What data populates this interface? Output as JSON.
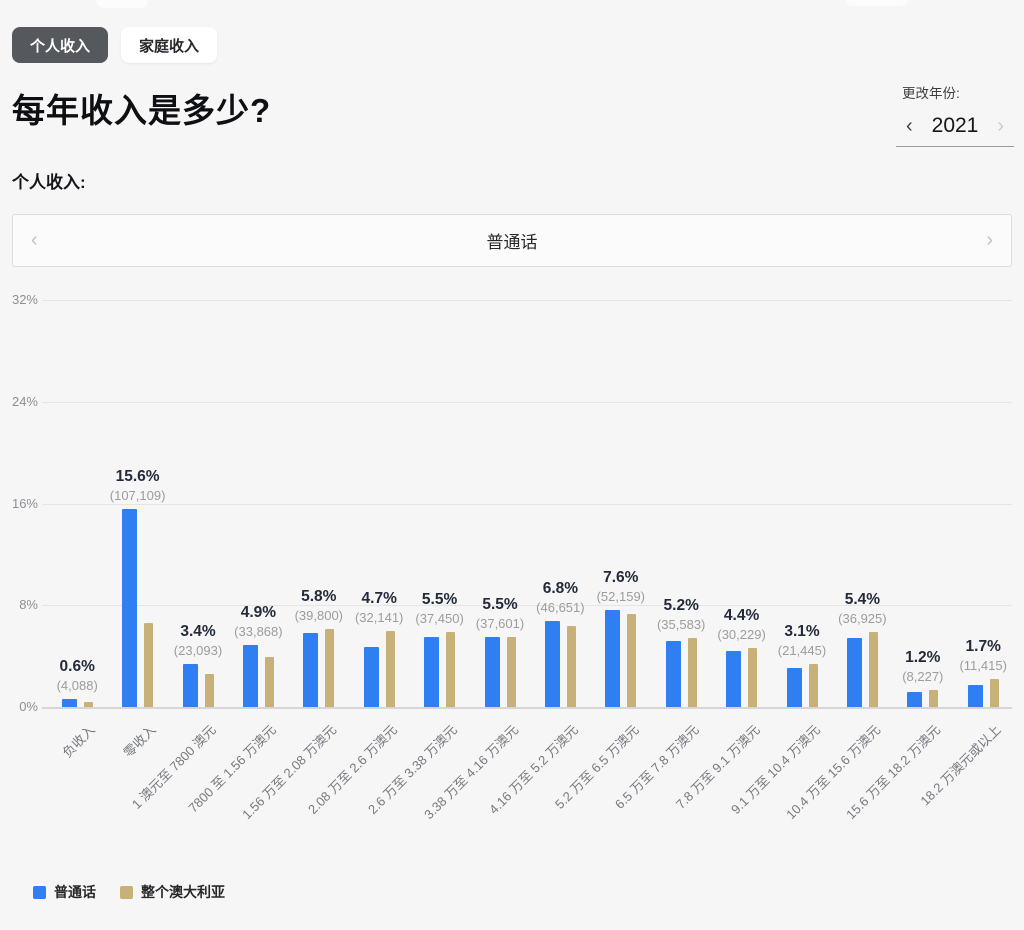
{
  "tabs": [
    {
      "label": "个人收入",
      "selected": true
    },
    {
      "label": "家庭收入",
      "selected": false
    }
  ],
  "title": "每年收入是多少?",
  "year_control": {
    "label": "更改年份:",
    "year": "2021",
    "prev_icon": "‹",
    "next_icon": "›"
  },
  "section_label": "个人收入:",
  "carousel": {
    "value": "普通话",
    "prev_icon": "‹",
    "next_icon": "›"
  },
  "colors": {
    "primary_series": "#2f7ef2",
    "secondary_series": "#c7b179",
    "selected_tab_bg": "#55585d",
    "percent_label": "#232b3a",
    "count_label": "#9c9c9c"
  },
  "chart_data": {
    "type": "bar",
    "categories": [
      "负收入",
      "零收入",
      "1 澳元至 7800 澳元",
      "7800 至 1.56 万澳元",
      "1.56 万至 2.08 万澳元",
      "2.08 万至 2.6 万澳元",
      "2.6 万至 3.38 万澳元",
      "3.38 万至 4.16 万澳元",
      "4.16 万至 5.2 万澳元",
      "5.2 万至 6.5 万澳元",
      "6.5 万至 7.8 万澳元",
      "7.8 万至 9.1 万澳元",
      "9.1 万至 10.4 万澳元",
      "10.4 万至 15.6 万澳元",
      "15.6 万至 18.2 万澳元",
      "18.2 万澳元或以上"
    ],
    "series": [
      {
        "name": "普通话",
        "color": "#2f7ef2",
        "values": [
          0.6,
          15.6,
          3.4,
          4.9,
          5.8,
          4.7,
          5.5,
          5.5,
          6.8,
          7.6,
          5.2,
          4.4,
          3.1,
          5.4,
          1.2,
          1.7
        ],
        "counts": [
          "4,088",
          "107,109",
          "23,093",
          "33,868",
          "39,800",
          "32,141",
          "37,450",
          "37,601",
          "46,651",
          "52,159",
          "35,583",
          "30,229",
          "21,445",
          "36,925",
          "8,227",
          "11,415"
        ]
      },
      {
        "name": "整个澳大利亚",
        "color": "#c7b179",
        "values": [
          0.4,
          6.6,
          2.6,
          3.9,
          6.1,
          6.0,
          5.9,
          5.5,
          6.4,
          7.3,
          5.4,
          4.6,
          3.4,
          5.9,
          1.3,
          2.2
        ]
      }
    ],
    "yticks": [
      "0%",
      "8%",
      "16%",
      "24%",
      "32%"
    ],
    "ylim": [
      0,
      32
    ],
    "grid": true,
    "legend_position": "bottom",
    "bar_label_format": "percent over (count)"
  }
}
